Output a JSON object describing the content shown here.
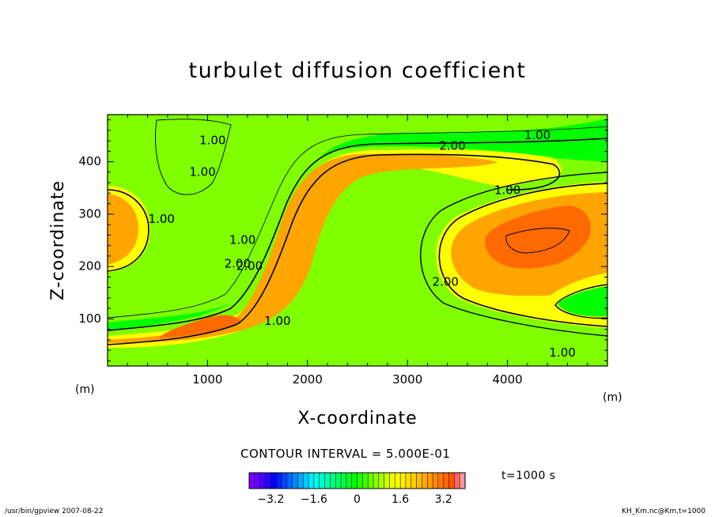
{
  "chart_data": {
    "type": "heatmap",
    "title": "turbulet diffusion coefficient",
    "xlabel": "X-coordinate",
    "ylabel": "Z-coordinate",
    "x_unit": "(m)",
    "y_unit": "(m)",
    "xlim": [
      0,
      5000
    ],
    "ylim": [
      10,
      490
    ],
    "xticks": [
      1000,
      2000,
      3000,
      4000
    ],
    "yticks": [
      100,
      200,
      300,
      400
    ],
    "contour_interval_text": "CONTOUR INTERVAL = 5.000E-01",
    "contour_labels": [
      {
        "text": "1.00",
        "x": 1050,
        "y": 440
      },
      {
        "text": "1.00",
        "x": 950,
        "y": 380
      },
      {
        "text": "1.00",
        "x": 540,
        "y": 290
      },
      {
        "text": "1.00",
        "x": 1350,
        "y": 250
      },
      {
        "text": "2.00",
        "x": 1300,
        "y": 205
      },
      {
        "text": "2.00",
        "x": 1420,
        "y": 200
      },
      {
        "text": "1.00",
        "x": 1700,
        "y": 95
      },
      {
        "text": "2.00",
        "x": 3450,
        "y": 430
      },
      {
        "text": "1.00",
        "x": 4300,
        "y": 450
      },
      {
        "text": "1.00",
        "x": 4000,
        "y": 345
      },
      {
        "text": "2.00",
        "x": 3380,
        "y": 170
      },
      {
        "text": "1.00",
        "x": 4550,
        "y": 35
      }
    ],
    "colorbar": {
      "min": -4.0,
      "max": 4.0,
      "tick_values": [
        -3.2,
        -1.6,
        0,
        1.6,
        3.2
      ],
      "tick_labels": [
        "−3.2",
        "−1.6",
        "0",
        "1.6",
        "3.2"
      ]
    },
    "colors": {
      "background": "#00ff00",
      "low_level": "#7fff00",
      "mid_level": "#ffff00",
      "high_level": "#ffa500",
      "peak_level": "#ff6a00"
    }
  },
  "time_label": "t=1000 s",
  "footer_left": "/usr/bin/gpview   2007-08-22",
  "footer_right": "KH_Km.nc@Km,t=1000"
}
